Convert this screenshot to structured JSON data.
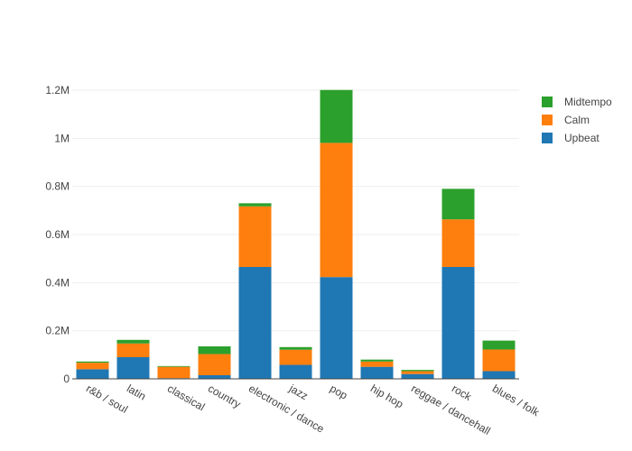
{
  "chart_data": {
    "type": "bar",
    "stacked": true,
    "categories": [
      "r&b / soul",
      "latin",
      "classical",
      "country",
      "electronic / dance",
      "jazz",
      "pop",
      "hip hop",
      "reggae / dancehall",
      "rock",
      "blues / folk"
    ],
    "series": [
      {
        "name": "Upbeat",
        "color": "#1f77b4",
        "values": [
          40000,
          90000,
          3000,
          15000,
          465000,
          58000,
          423000,
          50000,
          20000,
          465000,
          32000
        ]
      },
      {
        "name": "Calm",
        "color": "#ff7f0e",
        "values": [
          27000,
          57000,
          47000,
          88000,
          252000,
          63000,
          558000,
          22000,
          12000,
          198000,
          90000
        ]
      },
      {
        "name": "Midtempo",
        "color": "#2ca02c",
        "values": [
          5000,
          15000,
          3000,
          32000,
          13000,
          11000,
          220000,
          8000,
          5000,
          127000,
          37000
        ]
      }
    ],
    "ylim": [
      0,
      1200000
    ],
    "y_ticks": [
      {
        "value": 0,
        "label": "0"
      },
      {
        "value": 200000,
        "label": "0.2M"
      },
      {
        "value": 400000,
        "label": "0.4M"
      },
      {
        "value": 600000,
        "label": "0.6M"
      },
      {
        "value": 800000,
        "label": "0.8M"
      },
      {
        "value": 1000000,
        "label": "1M"
      },
      {
        "value": 1200000,
        "label": "1.2M"
      }
    ],
    "legend": {
      "position": "top-right",
      "order": [
        "Midtempo",
        "Calm",
        "Upbeat"
      ]
    },
    "grid": true,
    "title": "",
    "xlabel": "",
    "ylabel": ""
  }
}
